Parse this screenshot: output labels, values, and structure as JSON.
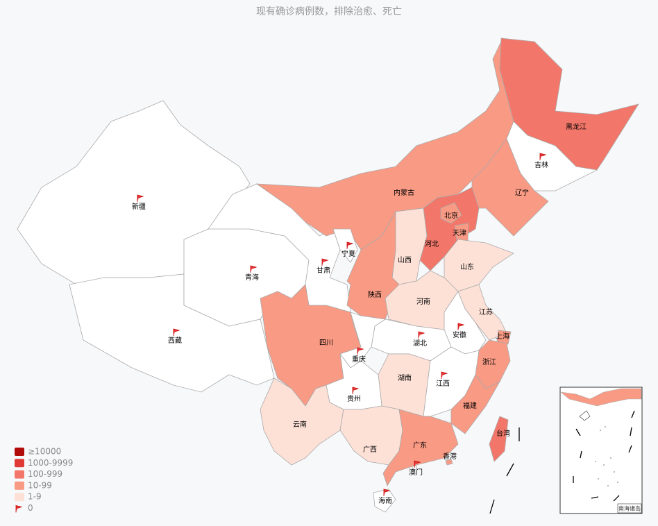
{
  "title": "现有确诊病例数，排除治愈、死亡",
  "legend": [
    {
      "label": "≥10000",
      "color": "#b20b0b"
    },
    {
      "label": "1000-9999",
      "color": "#e03a36"
    },
    {
      "label": "100-999",
      "color": "#f2776a"
    },
    {
      "label": "10-99",
      "color": "#f99a84"
    },
    {
      "label": "1-9",
      "color": "#fde1d7"
    },
    {
      "label": "0",
      "color": "#ffffff",
      "symbol": "flag"
    }
  ],
  "regions": [
    {
      "name": "新疆",
      "color": "#ffffff"
    },
    {
      "name": "西藏",
      "color": "#ffffff"
    },
    {
      "name": "青海",
      "color": "#ffffff"
    },
    {
      "name": "甘肃",
      "color": "#ffffff"
    },
    {
      "name": "内蒙古",
      "color": "#f99a84"
    },
    {
      "name": "黑龙江",
      "color": "#f2776a"
    },
    {
      "name": "吉林",
      "color": "#ffffff"
    },
    {
      "name": "辽宁",
      "color": "#f99a84"
    },
    {
      "name": "河北",
      "color": "#f2776a"
    },
    {
      "name": "北京",
      "color": "#f99a84"
    },
    {
      "name": "天津",
      "color": "#f99a84"
    },
    {
      "name": "山西",
      "color": "#fde1d7"
    },
    {
      "name": "宁夏",
      "color": "#ffffff"
    },
    {
      "name": "陕西",
      "color": "#f99a84"
    },
    {
      "name": "山东",
      "color": "#fde1d7"
    },
    {
      "name": "河南",
      "color": "#fde1d7"
    },
    {
      "name": "江苏",
      "color": "#fde1d7"
    },
    {
      "name": "安徽",
      "color": "#ffffff"
    },
    {
      "name": "上海",
      "color": "#f99a84"
    },
    {
      "name": "湖北",
      "color": "#ffffff"
    },
    {
      "name": "浙江",
      "color": "#f99a84"
    },
    {
      "name": "四川",
      "color": "#f99a84"
    },
    {
      "name": "重庆",
      "color": "#ffffff"
    },
    {
      "name": "湖南",
      "color": "#fde1d7"
    },
    {
      "name": "江西",
      "color": "#ffffff"
    },
    {
      "name": "福建",
      "color": "#f99a84"
    },
    {
      "name": "贵州",
      "color": "#ffffff"
    },
    {
      "name": "云南",
      "color": "#fde1d7"
    },
    {
      "name": "广西",
      "color": "#fde1d7"
    },
    {
      "name": "广东",
      "color": "#f99a84"
    },
    {
      "name": "海南",
      "color": "#ffffff"
    },
    {
      "name": "台湾",
      "color": "#f2776a"
    },
    {
      "name": "香港",
      "color": "#f99a84"
    },
    {
      "name": "澳门",
      "color": "#ffffff"
    }
  ],
  "inset_label": "南海诸岛"
}
